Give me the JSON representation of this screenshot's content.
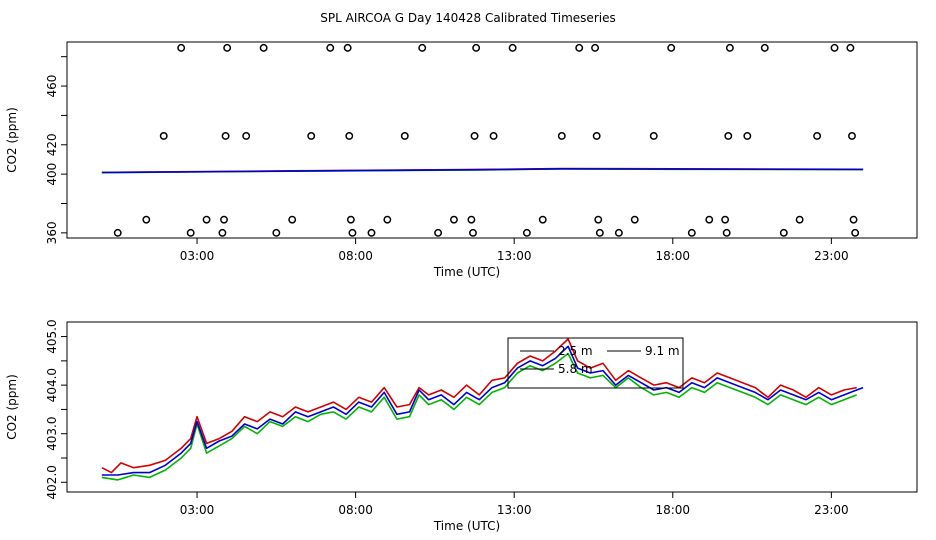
{
  "title": "SPL AIRCOA G  Day 140428  Calibrated Timeseries",
  "chart_data": [
    {
      "type": "scatter",
      "xlabel": "Time (UTC)",
      "ylabel": "CO2 (ppm)",
      "xlim": [
        -1.1,
        25.7
      ],
      "ylim": [
        356.5,
        490
      ],
      "xticks": [
        3,
        8,
        13,
        18,
        23
      ],
      "xtick_labels": [
        "03:00",
        "08:00",
        "13:00",
        "18:00",
        "23:00"
      ],
      "yticks": [
        360,
        380,
        400,
        420,
        440,
        460,
        480
      ],
      "ytick_labels": [
        "360",
        "",
        "400",
        "420",
        "",
        "460",
        ""
      ],
      "grid": false,
      "points": [
        [
          0.5,
          360
        ],
        [
          1.4,
          369
        ],
        [
          1.95,
          426
        ],
        [
          2.5,
          486
        ],
        [
          2.8,
          360
        ],
        [
          3.3,
          369
        ],
        [
          3.8,
          360
        ],
        [
          3.85,
          369
        ],
        [
          3.9,
          426
        ],
        [
          3.95,
          486
        ],
        [
          4.55,
          426
        ],
        [
          5.1,
          486
        ],
        [
          5.5,
          360
        ],
        [
          6.0,
          369
        ],
        [
          6.6,
          426
        ],
        [
          7.2,
          486
        ],
        [
          7.75,
          486
        ],
        [
          7.8,
          426
        ],
        [
          7.85,
          369
        ],
        [
          7.9,
          360
        ],
        [
          8.5,
          360
        ],
        [
          9.0,
          369
        ],
        [
          9.55,
          426
        ],
        [
          10.1,
          486
        ],
        [
          10.6,
          360
        ],
        [
          11.1,
          369
        ],
        [
          11.65,
          369
        ],
        [
          11.7,
          360
        ],
        [
          11.75,
          426
        ],
        [
          11.8,
          486
        ],
        [
          12.35,
          426
        ],
        [
          12.95,
          486
        ],
        [
          13.4,
          360
        ],
        [
          13.9,
          369
        ],
        [
          14.5,
          426
        ],
        [
          15.05,
          486
        ],
        [
          15.55,
          486
        ],
        [
          15.6,
          426
        ],
        [
          15.65,
          369
        ],
        [
          15.7,
          360
        ],
        [
          16.3,
          360
        ],
        [
          16.8,
          369
        ],
        [
          17.4,
          426
        ],
        [
          17.95,
          486
        ],
        [
          18.6,
          360
        ],
        [
          19.15,
          369
        ],
        [
          19.65,
          369
        ],
        [
          19.7,
          360
        ],
        [
          19.75,
          426
        ],
        [
          19.8,
          486
        ],
        [
          20.35,
          426
        ],
        [
          20.9,
          486
        ],
        [
          21.5,
          360
        ],
        [
          22.0,
          369
        ],
        [
          22.55,
          426
        ],
        [
          23.1,
          486
        ],
        [
          23.6,
          486
        ],
        [
          23.65,
          426
        ],
        [
          23.7,
          369
        ],
        [
          23.75,
          360
        ]
      ],
      "lines": [
        {
          "color": "#d40000",
          "values": [
            [
              0,
              401.2
            ],
            [
              6,
              402.3
            ],
            [
              12,
              403.2
            ],
            [
              14.5,
              403.8
            ],
            [
              18,
              403.6
            ],
            [
              24,
              403.3
            ]
          ]
        },
        {
          "color": "#00b400",
          "values": [
            [
              0,
              401.0
            ],
            [
              6,
              402.0
            ],
            [
              12,
              402.9
            ],
            [
              14.5,
              403.5
            ],
            [
              18,
              403.3
            ],
            [
              24,
              403.1
            ]
          ]
        },
        {
          "color": "#0000d2",
          "values": [
            [
              0,
              401.1
            ],
            [
              6,
              402.1
            ],
            [
              12,
              403.0
            ],
            [
              14.5,
              403.6
            ],
            [
              18,
              403.4
            ],
            [
              24,
              403.2
            ]
          ]
        }
      ]
    },
    {
      "type": "line",
      "xlabel": "Time (UTC)",
      "ylabel": "CO2 (ppm)",
      "xlim": [
        -1.1,
        25.7
      ],
      "ylim": [
        401.8,
        405.3
      ],
      "xticks": [
        3,
        8,
        13,
        18,
        23
      ],
      "xtick_labels": [
        "03:00",
        "08:00",
        "13:00",
        "18:00",
        "23:00"
      ],
      "yticks": [
        402,
        402.5,
        403,
        403.5,
        404,
        404.5,
        405
      ],
      "ytick_labels": [
        "402.0",
        "",
        "403.0",
        "",
        "404.0",
        "",
        "405.0"
      ],
      "grid": false,
      "legend": {
        "placement": "top-center",
        "entries": [
          {
            "label": "2.5 m",
            "color": "#00b400"
          },
          {
            "label": "9.1 m",
            "color": "#d40000"
          },
          {
            "label": "5.8 m",
            "color": "#0000d2"
          }
        ]
      },
      "series": [
        {
          "color": "#d40000",
          "values": [
            [
              0,
              402.3
            ],
            [
              0.3,
              402.2
            ],
            [
              0.6,
              402.4
            ],
            [
              1,
              402.3
            ],
            [
              1.5,
              402.35
            ],
            [
              2,
              402.45
            ],
            [
              2.5,
              402.7
            ],
            [
              2.8,
              402.9
            ],
            [
              3.0,
              403.35
            ],
            [
              3.3,
              402.8
            ],
            [
              3.7,
              402.9
            ],
            [
              4.1,
              403.05
            ],
            [
              4.5,
              403.35
            ],
            [
              4.9,
              403.25
            ],
            [
              5.3,
              403.45
            ],
            [
              5.7,
              403.35
            ],
            [
              6.1,
              403.55
            ],
            [
              6.5,
              403.45
            ],
            [
              6.9,
              403.55
            ],
            [
              7.3,
              403.65
            ],
            [
              7.7,
              403.5
            ],
            [
              8.1,
              403.75
            ],
            [
              8.5,
              403.65
            ],
            [
              8.9,
              403.95
            ],
            [
              9.3,
              403.55
            ],
            [
              9.7,
              403.6
            ],
            [
              10.0,
              403.95
            ],
            [
              10.3,
              403.8
            ],
            [
              10.7,
              403.9
            ],
            [
              11.1,
              403.75
            ],
            [
              11.5,
              404.0
            ],
            [
              11.9,
              403.8
            ],
            [
              12.3,
              404.1
            ],
            [
              12.7,
              404.15
            ],
            [
              13.1,
              404.45
            ],
            [
              13.5,
              404.6
            ],
            [
              13.9,
              404.5
            ],
            [
              14.3,
              404.7
            ],
            [
              14.7,
              404.95
            ],
            [
              15.0,
              404.5
            ],
            [
              15.4,
              404.35
            ],
            [
              15.8,
              404.45
            ],
            [
              16.2,
              404.1
            ],
            [
              16.6,
              404.3
            ],
            [
              17.0,
              404.15
            ],
            [
              17.4,
              404.0
            ],
            [
              17.8,
              404.05
            ],
            [
              18.2,
              403.95
            ],
            [
              18.6,
              404.15
            ],
            [
              19.0,
              404.05
            ],
            [
              19.4,
              404.25
            ],
            [
              19.8,
              404.15
            ],
            [
              20.2,
              404.05
            ],
            [
              20.6,
              403.95
            ],
            [
              21.0,
              403.75
            ],
            [
              21.4,
              404.0
            ],
            [
              21.8,
              403.9
            ],
            [
              22.2,
              403.75
            ],
            [
              22.6,
              403.95
            ],
            [
              23.0,
              403.8
            ],
            [
              23.4,
              403.9
            ],
            [
              23.8,
              403.95
            ]
          ]
        },
        {
          "color": "#00b400",
          "values": [
            [
              0,
              402.1
            ],
            [
              0.5,
              402.05
            ],
            [
              1,
              402.15
            ],
            [
              1.5,
              402.1
            ],
            [
              2,
              402.25
            ],
            [
              2.5,
              402.5
            ],
            [
              2.8,
              402.7
            ],
            [
              3.0,
              403.2
            ],
            [
              3.3,
              402.6
            ],
            [
              3.7,
              402.75
            ],
            [
              4.1,
              402.9
            ],
            [
              4.5,
              403.15
            ],
            [
              4.9,
              403.0
            ],
            [
              5.3,
              403.25
            ],
            [
              5.7,
              403.15
            ],
            [
              6.1,
              403.35
            ],
            [
              6.5,
              403.25
            ],
            [
              6.9,
              403.4
            ],
            [
              7.3,
              403.45
            ],
            [
              7.7,
              403.3
            ],
            [
              8.1,
              403.55
            ],
            [
              8.5,
              403.45
            ],
            [
              8.9,
              403.75
            ],
            [
              9.3,
              403.3
            ],
            [
              9.7,
              403.35
            ],
            [
              10.0,
              403.8
            ],
            [
              10.3,
              403.6
            ],
            [
              10.7,
              403.7
            ],
            [
              11.1,
              403.5
            ],
            [
              11.5,
              403.75
            ],
            [
              11.9,
              403.6
            ],
            [
              12.3,
              403.85
            ],
            [
              12.7,
              403.95
            ],
            [
              13.1,
              404.25
            ],
            [
              13.5,
              404.4
            ],
            [
              13.9,
              404.3
            ],
            [
              14.3,
              404.45
            ],
            [
              14.7,
              404.65
            ],
            [
              15.0,
              404.25
            ],
            [
              15.4,
              404.15
            ],
            [
              15.8,
              404.2
            ],
            [
              16.2,
              403.95
            ],
            [
              16.6,
              404.15
            ],
            [
              17.0,
              403.95
            ],
            [
              17.4,
              403.8
            ],
            [
              17.8,
              403.85
            ],
            [
              18.2,
              403.75
            ],
            [
              18.6,
              403.95
            ],
            [
              19.0,
              403.85
            ],
            [
              19.4,
              404.05
            ],
            [
              19.8,
              403.95
            ],
            [
              20.2,
              403.85
            ],
            [
              20.6,
              403.75
            ],
            [
              21.0,
              403.6
            ],
            [
              21.4,
              403.8
            ],
            [
              21.8,
              403.7
            ],
            [
              22.2,
              403.6
            ],
            [
              22.6,
              403.75
            ],
            [
              23.0,
              403.6
            ],
            [
              23.4,
              403.7
            ],
            [
              23.8,
              403.8
            ]
          ]
        },
        {
          "color": "#0000d2",
          "values": [
            [
              0,
              402.15
            ],
            [
              0.5,
              402.15
            ],
            [
              1,
              402.2
            ],
            [
              1.5,
              402.2
            ],
            [
              2,
              402.35
            ],
            [
              2.5,
              402.6
            ],
            [
              2.8,
              402.8
            ],
            [
              3.0,
              403.25
            ],
            [
              3.3,
              402.7
            ],
            [
              3.7,
              402.85
            ],
            [
              4.1,
              402.95
            ],
            [
              4.5,
              403.2
            ],
            [
              4.9,
              403.1
            ],
            [
              5.3,
              403.3
            ],
            [
              5.7,
              403.2
            ],
            [
              6.1,
              403.45
            ],
            [
              6.5,
              403.35
            ],
            [
              6.9,
              403.45
            ],
            [
              7.3,
              403.55
            ],
            [
              7.7,
              403.4
            ],
            [
              8.1,
              403.65
            ],
            [
              8.5,
              403.55
            ],
            [
              8.9,
              403.85
            ],
            [
              9.3,
              403.4
            ],
            [
              9.7,
              403.45
            ],
            [
              10.0,
              403.9
            ],
            [
              10.3,
              403.7
            ],
            [
              10.7,
              403.8
            ],
            [
              11.1,
              403.6
            ],
            [
              11.5,
              403.85
            ],
            [
              11.9,
              403.7
            ],
            [
              12.3,
              403.95
            ],
            [
              12.7,
              404.05
            ],
            [
              13.1,
              404.35
            ],
            [
              13.5,
              404.5
            ],
            [
              13.9,
              404.4
            ],
            [
              14.3,
              404.55
            ],
            [
              14.7,
              404.8
            ],
            [
              15.0,
              404.35
            ],
            [
              15.4,
              404.25
            ],
            [
              15.8,
              404.3
            ],
            [
              16.2,
              404.0
            ],
            [
              16.6,
              404.2
            ],
            [
              17.0,
              404.05
            ],
            [
              17.4,
              403.9
            ],
            [
              17.8,
              403.95
            ],
            [
              18.2,
              403.85
            ],
            [
              18.6,
              404.05
            ],
            [
              19.0,
              403.95
            ],
            [
              19.4,
              404.15
            ],
            [
              19.8,
              404.05
            ],
            [
              20.2,
              403.95
            ],
            [
              20.6,
              403.85
            ],
            [
              21.0,
              403.7
            ],
            [
              21.4,
              403.9
            ],
            [
              21.8,
              403.8
            ],
            [
              22.2,
              403.7
            ],
            [
              22.6,
              403.85
            ],
            [
              23.0,
              403.7
            ],
            [
              23.4,
              403.8
            ],
            [
              23.8,
              403.9
            ],
            [
              24.0,
              403.95
            ]
          ]
        }
      ]
    }
  ]
}
